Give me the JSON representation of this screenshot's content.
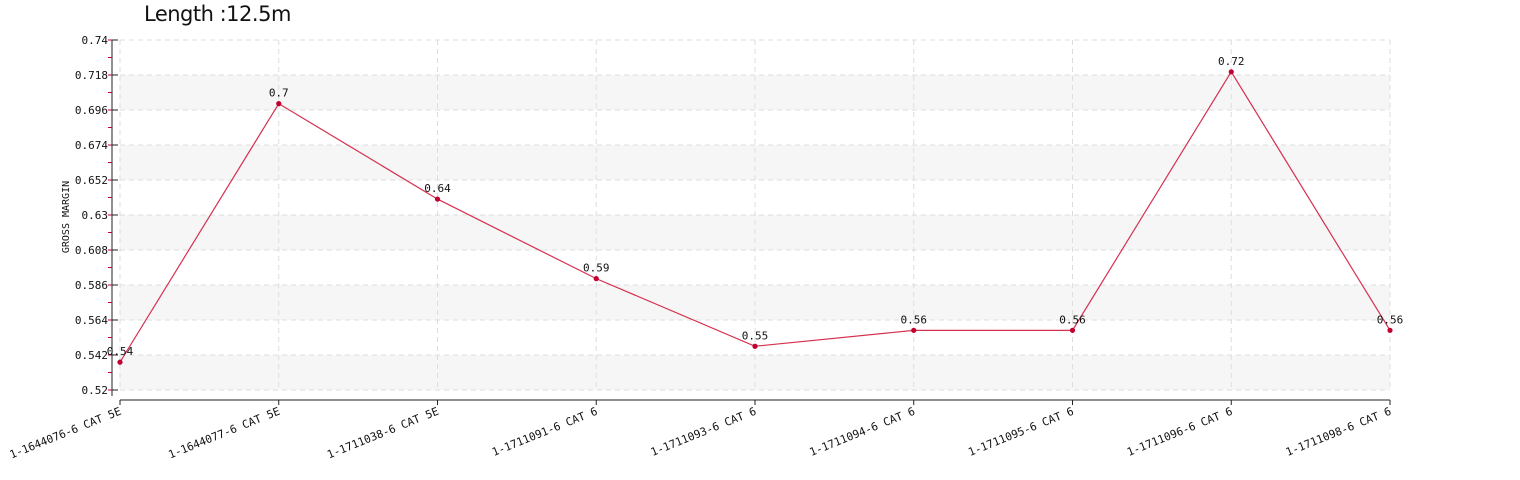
{
  "chart_data": {
    "type": "line",
    "title": "Length :12.5m",
    "ylabel": "GROSS MARGIN",
    "xlabel": "",
    "ylim": [
      0.52,
      0.74
    ],
    "yticks": [
      0.52,
      0.542,
      0.564,
      0.586,
      0.608,
      0.63,
      0.652,
      0.674,
      0.696,
      0.718,
      0.74
    ],
    "categories": [
      "1-1644076-6 CAT 5E",
      "1-1644077-6 CAT 5E",
      "1-1711038-6 CAT 5E",
      "1-1711091-6 CAT 6",
      "1-1711093-6 CAT 6",
      "1-1711094-6 CAT 6",
      "1-1711095-6 CAT 6",
      "1-1711096-6 CAT 6",
      "1-1711098-6 CAT 6"
    ],
    "values": [
      0.5375,
      0.7,
      0.64,
      0.59,
      0.5475,
      0.5575,
      0.5575,
      0.72,
      0.5575
    ],
    "data_labels": [
      "0.54",
      "0.7",
      "0.64",
      "0.59",
      "0.55",
      "0.56",
      "0.56",
      "0.72",
      "0.56"
    ],
    "grid": true,
    "colors": {
      "line": "#d6304f",
      "point": "#c2002f",
      "band": "#f6f6f6",
      "grid": "#dddddd"
    }
  }
}
